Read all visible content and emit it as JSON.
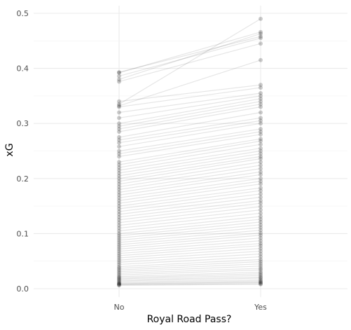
{
  "chart_data": {
    "type": "line",
    "subtype": "paired-slope",
    "title": "",
    "xlabel": "Royal Road Pass?",
    "ylabel": "xG",
    "categories": [
      "No",
      "Yes"
    ],
    "ylim": [
      0,
      0.5
    ],
    "yticks": [
      "0.0",
      "0.1",
      "0.2",
      "0.3",
      "0.4",
      "0.5"
    ],
    "grid": true,
    "legend": "none",
    "line_color": "#000000",
    "line_opacity": 0.1,
    "point_opacity": 0.2,
    "pairs": [
      [
        0.393,
        0.458
      ],
      [
        0.392,
        0.466
      ],
      [
        0.386,
        0.455
      ],
      [
        0.38,
        0.463
      ],
      [
        0.376,
        0.445
      ],
      [
        0.34,
        0.37
      ],
      [
        0.335,
        0.49
      ],
      [
        0.332,
        0.415
      ],
      [
        0.33,
        0.365
      ],
      [
        0.32,
        0.355
      ],
      [
        0.31,
        0.35
      ],
      [
        0.3,
        0.345
      ],
      [
        0.295,
        0.34
      ],
      [
        0.29,
        0.335
      ],
      [
        0.285,
        0.33
      ],
      [
        0.275,
        0.32
      ],
      [
        0.27,
        0.31
      ],
      [
        0.265,
        0.305
      ],
      [
        0.258,
        0.3
      ],
      [
        0.25,
        0.29
      ],
      [
        0.245,
        0.285
      ],
      [
        0.24,
        0.28
      ],
      [
        0.23,
        0.272
      ],
      [
        0.225,
        0.268
      ],
      [
        0.22,
        0.262
      ],
      [
        0.215,
        0.255
      ],
      [
        0.21,
        0.25
      ],
      [
        0.205,
        0.245
      ],
      [
        0.2,
        0.24
      ],
      [
        0.195,
        0.236
      ],
      [
        0.19,
        0.23
      ],
      [
        0.185,
        0.224
      ],
      [
        0.18,
        0.218
      ],
      [
        0.175,
        0.212
      ],
      [
        0.17,
        0.207
      ],
      [
        0.165,
        0.2
      ],
      [
        0.16,
        0.195
      ],
      [
        0.155,
        0.19
      ],
      [
        0.15,
        0.183
      ],
      [
        0.145,
        0.178
      ],
      [
        0.14,
        0.172
      ],
      [
        0.135,
        0.166
      ],
      [
        0.13,
        0.16
      ],
      [
        0.125,
        0.155
      ],
      [
        0.12,
        0.149
      ],
      [
        0.115,
        0.143
      ],
      [
        0.11,
        0.137
      ],
      [
        0.105,
        0.131
      ],
      [
        0.1,
        0.126
      ],
      [
        0.096,
        0.121
      ],
      [
        0.092,
        0.116
      ],
      [
        0.088,
        0.111
      ],
      [
        0.084,
        0.106
      ],
      [
        0.08,
        0.101
      ],
      [
        0.076,
        0.097
      ],
      [
        0.072,
        0.092
      ],
      [
        0.068,
        0.087
      ],
      [
        0.064,
        0.082
      ],
      [
        0.06,
        0.078
      ],
      [
        0.056,
        0.073
      ],
      [
        0.052,
        0.068
      ],
      [
        0.048,
        0.063
      ],
      [
        0.044,
        0.058
      ],
      [
        0.04,
        0.053
      ],
      [
        0.037,
        0.049
      ],
      [
        0.034,
        0.045
      ],
      [
        0.031,
        0.041
      ],
      [
        0.028,
        0.037
      ],
      [
        0.025,
        0.034
      ],
      [
        0.022,
        0.03
      ],
      [
        0.02,
        0.027
      ],
      [
        0.018,
        0.024
      ],
      [
        0.016,
        0.021
      ],
      [
        0.014,
        0.019
      ],
      [
        0.012,
        0.016
      ],
      [
        0.01,
        0.014
      ],
      [
        0.009,
        0.012
      ],
      [
        0.008,
        0.011
      ],
      [
        0.007,
        0.009
      ],
      [
        0.006,
        0.008
      ]
    ]
  }
}
